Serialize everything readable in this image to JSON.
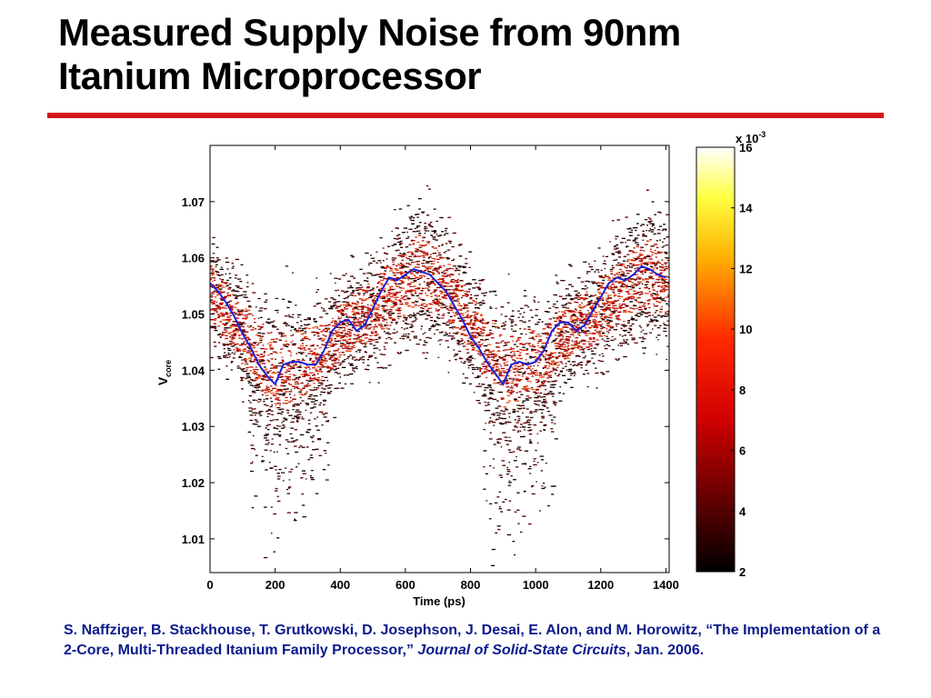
{
  "slide": {
    "title_line1": "Measured Supply Noise from 90nm",
    "title_line2": "Itanium Microprocessor"
  },
  "citation": {
    "part1": "S. Naffziger, B. Stackhouse, T. Grutkowski, D. Josephson, J. Desai, E. Alon, and M. Horowitz, “The Implementation of a 2-Core, Multi-Threaded Itanium Family Processor,” ",
    "journal": "Journal of Solid-State Circuits",
    "part2": ", Jan. 2006."
  },
  "colors": {
    "title_rule": "#d2171b",
    "mean_trace": "#1f1fd6",
    "citation_text": "#0b1a8c"
  },
  "chart_data": {
    "type": "heatmap",
    "xlabel": "Time (ps)",
    "ylabel_main": "V",
    "ylabel_sub": "core",
    "xlim": [
      0,
      1410
    ],
    "ylim": [
      1.004,
      1.08
    ],
    "xticks": [
      0,
      200,
      400,
      600,
      800,
      1000,
      1200,
      1400
    ],
    "yticks": [
      1.01,
      1.02,
      1.03,
      1.04,
      1.05,
      1.06,
      1.07
    ],
    "colorbar": {
      "multiplier": "x 10",
      "exponent": "-3",
      "min": 2,
      "max": 16,
      "ticks": [
        2,
        4,
        6,
        8,
        10,
        12,
        14,
        16
      ],
      "colormap": "hot"
    },
    "series": [
      {
        "x": [
          0,
          25,
          50,
          75,
          100,
          125,
          150,
          175,
          200,
          225,
          250,
          275,
          300,
          325,
          350,
          375,
          400,
          425,
          450,
          475,
          500,
          525,
          550,
          575,
          600,
          625,
          650,
          675,
          700,
          725,
          750,
          775,
          800,
          825,
          850,
          875,
          900,
          925,
          950,
          975,
          1000,
          1025,
          1050,
          1075,
          1100,
          1125,
          1150,
          1175,
          1200,
          1225,
          1250,
          1275,
          1300,
          1325,
          1350,
          1375,
          1400
        ],
        "values": [
          1.0555,
          1.054,
          1.052,
          1.0495,
          1.0465,
          1.044,
          1.041,
          1.039,
          1.0375,
          1.041,
          1.0415,
          1.0415,
          1.041,
          1.041,
          1.0435,
          1.047,
          1.0485,
          1.049,
          1.047,
          1.048,
          1.051,
          1.054,
          1.0565,
          1.056,
          1.057,
          1.058,
          1.0575,
          1.057,
          1.0555,
          1.054,
          1.0515,
          1.049,
          1.046,
          1.044,
          1.0415,
          1.0395,
          1.0375,
          1.041,
          1.0415,
          1.041,
          1.0415,
          1.0435,
          1.047,
          1.0485,
          1.0485,
          1.047,
          1.048,
          1.0505,
          1.053,
          1.0555,
          1.0565,
          1.056,
          1.057,
          1.0585,
          1.058,
          1.057,
          1.0565
        ]
      }
    ],
    "noise_band": {
      "x": [
        0,
        100,
        200,
        300,
        400,
        500,
        600,
        650,
        700,
        800,
        900,
        1000,
        1100,
        1200,
        1300,
        1350,
        1400
      ],
      "center": [
        1.054,
        1.046,
        1.04,
        1.042,
        1.047,
        1.051,
        1.056,
        1.058,
        1.056,
        1.048,
        1.04,
        1.042,
        1.047,
        1.051,
        1.056,
        1.058,
        1.055
      ],
      "halfwidth": [
        0.008,
        0.009,
        0.011,
        0.01,
        0.008,
        0.009,
        0.01,
        0.012,
        0.01,
        0.009,
        0.011,
        0.01,
        0.008,
        0.009,
        0.01,
        0.011,
        0.009
      ]
    }
  }
}
